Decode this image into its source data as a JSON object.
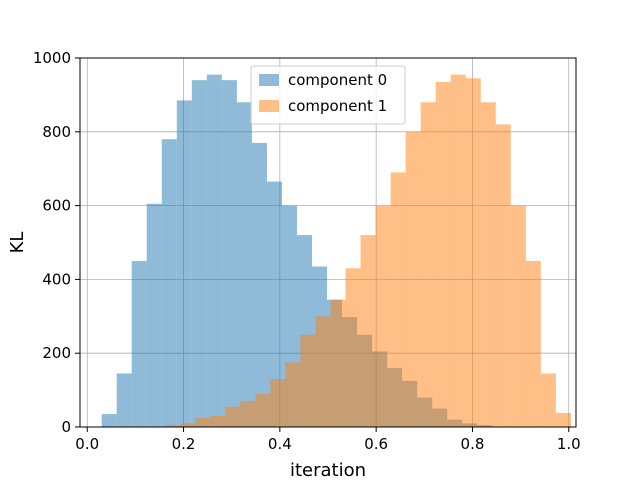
{
  "chart_data": {
    "type": "bar",
    "title": "",
    "xlabel": "iteration",
    "ylabel": "KL",
    "xlim": [
      -0.015,
      1.015
    ],
    "ylim": [
      0,
      1000
    ],
    "xticks": [
      0.0,
      0.2,
      0.4,
      0.6,
      0.8,
      1.0
    ],
    "xtick_labels": [
      "0.0",
      "0.2",
      "0.4",
      "0.6",
      "0.8",
      "1.0"
    ],
    "yticks": [
      0,
      200,
      400,
      600,
      800,
      1000
    ],
    "ytick_labels": [
      "0",
      "200",
      "400",
      "600",
      "800",
      "1000"
    ],
    "grid": true,
    "legend_position": "upper-center",
    "series": [
      {
        "name": "component 0",
        "color": "#1f77b4",
        "opacity": 0.5,
        "bin_start": 0.03,
        "bin_width": 0.0312,
        "values": [
          35,
          145,
          450,
          605,
          780,
          885,
          940,
          955,
          940,
          880,
          770,
          665,
          600,
          520,
          435,
          345,
          298,
          250,
          205,
          160,
          125,
          80,
          50,
          20,
          10,
          5
        ]
      },
      {
        "name": "component 1",
        "color": "#ff7f0e",
        "opacity": 0.5,
        "bin_start": 0.162,
        "bin_width": 0.0312,
        "values": [
          5,
          10,
          25,
          30,
          55,
          70,
          90,
          130,
          175,
          250,
          300,
          345,
          430,
          520,
          600,
          690,
          800,
          880,
          935,
          955,
          945,
          880,
          820,
          600,
          450,
          145,
          38
        ]
      }
    ]
  }
}
